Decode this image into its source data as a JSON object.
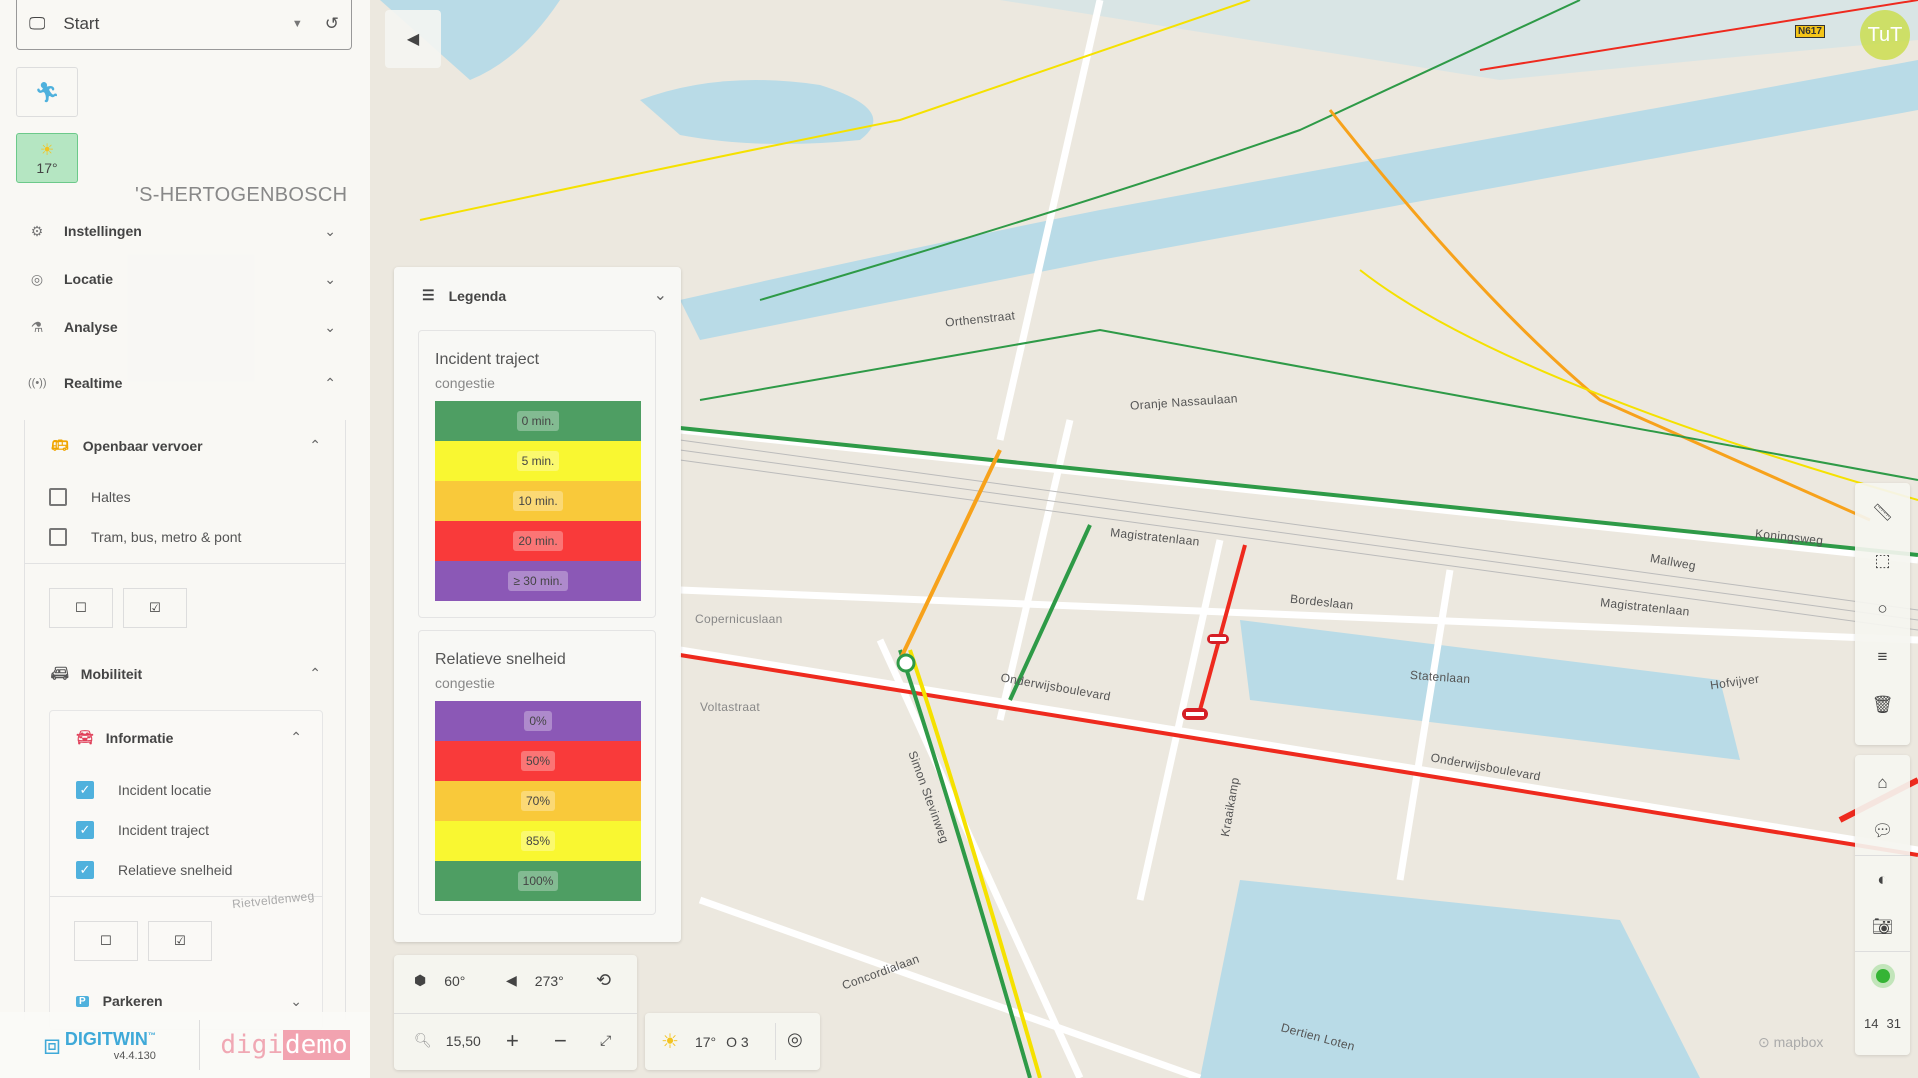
{
  "map": {
    "city_label": "'S-HERTOGENBOSCH",
    "streets": [
      "Onderwijsboulevard",
      "Onderwijsboulevard",
      "Magistratenlaan",
      "Magistratenlaan",
      "Statenlaan",
      "Bordeslaan",
      "Hofvijver",
      "Koningsweg",
      "Concordialaan",
      "Dertien Loten",
      "Simon Stevinweg",
      "Kraaikamp",
      "Orthenstraat",
      "Oranje Nassaulaan",
      "Mallweg",
      "Rietveldenweg",
      "Copernicuslaan",
      "Voltastraat"
    ],
    "road_badge": "N617",
    "attribution": "mapbox",
    "colors": {
      "green": "#2e9a47",
      "yellow": "#f5e100",
      "orange": "#f7a21b",
      "red": "#ee2a1e",
      "water": "#b9dbe7",
      "land": "#ece8df"
    }
  },
  "sidebar": {
    "start": {
      "label": "Start",
      "icon": "monitor-icon"
    },
    "weather_tile": {
      "temp": "17°"
    },
    "menu": [
      {
        "label": "Instellingen",
        "icon": "gear-icon",
        "expanded": false
      },
      {
        "label": "Locatie",
        "icon": "location-icon",
        "expanded": false
      },
      {
        "label": "Analyse",
        "icon": "flask-icon",
        "expanded": false
      },
      {
        "label": "Realtime",
        "icon": "broadcast-icon",
        "expanded": true
      }
    ],
    "ov": {
      "label": "Openbaar vervoer",
      "items": [
        {
          "label": "Haltes",
          "checked": false
        },
        {
          "label": "Tram, bus, metro & pont",
          "checked": false
        }
      ]
    },
    "mobiliteit": {
      "label": "Mobiliteit"
    },
    "informatie": {
      "label": "Informatie",
      "items": [
        {
          "label": "Incident locatie",
          "checked": true
        },
        {
          "label": "Incident traject",
          "checked": true
        },
        {
          "label": "Relatieve snelheid",
          "checked": true
        }
      ]
    },
    "parkeren": {
      "label": "Parkeren"
    },
    "footer": {
      "brand": "DIGITWIN",
      "tm": "™",
      "version": "v4.4.130",
      "demo_a": "digi",
      "demo_b": "demo"
    }
  },
  "legend": {
    "title": "Legenda",
    "sections": [
      {
        "title": "Incident traject",
        "subtitle": "congestie",
        "bands": [
          {
            "label": "0 min.",
            "color": "#4e9e63"
          },
          {
            "label": "5 min.",
            "color": "#f9f731"
          },
          {
            "label": "10 min.",
            "color": "#f9c93a"
          },
          {
            "label": "20 min.",
            "color": "#f93a3a"
          },
          {
            "label": "≥ 30 min.",
            "color": "#8b58b6"
          }
        ]
      },
      {
        "title": "Relatieve snelheid",
        "subtitle": "congestie",
        "bands": [
          {
            "label": "0%",
            "color": "#8b58b6"
          },
          {
            "label": "50%",
            "color": "#f93a3a"
          },
          {
            "label": "70%",
            "color": "#f9c93a"
          },
          {
            "label": "85%",
            "color": "#f9f731"
          },
          {
            "label": "100%",
            "color": "#4e9e63"
          }
        ]
      }
    ]
  },
  "view": {
    "pitch": "60°",
    "bearing": "273°",
    "zoom": "15,50",
    "plus": "+",
    "minus": "−"
  },
  "weather": {
    "temp": "17°",
    "wind": "O 3"
  },
  "avatar": {
    "initials": "TuT"
  },
  "clock": {
    "hours": "14",
    "minutes": "31"
  }
}
